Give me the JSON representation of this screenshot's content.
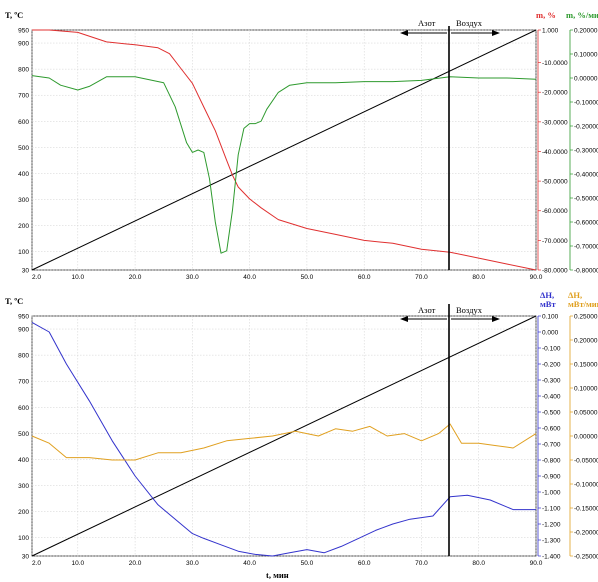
{
  "chart_data": [
    {
      "type": "line",
      "x": {
        "label": "",
        "ticks": [
          "2.0",
          "10.0",
          "20.0",
          "30.0",
          "40.0",
          "50.0",
          "60.0",
          "70.0",
          "80.0",
          "90.0"
        ],
        "range": [
          2,
          90
        ]
      },
      "y_left": {
        "label": "T, ºC",
        "ticks": [
          "30",
          "100",
          "200",
          "300",
          "400",
          "500",
          "600",
          "700",
          "800",
          "900",
          "950"
        ],
        "range": [
          30,
          950
        ],
        "color": "#000000"
      },
      "y_right1": {
        "label": "m, %",
        "ticks": [
          "1.000",
          "-10.0000",
          "-20.0000",
          "-30.0000",
          "-40.0000",
          "-50.0000",
          "-60.0000",
          "-70.0000",
          "-80.0000"
        ],
        "range": [
          -80,
          1
        ],
        "color": "#e03030"
      },
      "y_right2": {
        "label": "m, %/мин",
        "ticks": [
          "0.20000",
          "0.10000",
          "0.00000",
          "-0.10000",
          "-0.20000",
          "-0.30000",
          "-0.40000",
          "-0.50000",
          "-0.60000",
          "-0.70000",
          "-0.80000"
        ],
        "range": [
          -0.8,
          0.2
        ],
        "color": "#2e9a2e"
      },
      "annotation": {
        "left": "Азот",
        "right": "Воздух",
        "x": 75
      },
      "grid": true,
      "series": [
        {
          "axis": "left",
          "color": "#000000",
          "x": [
            2,
            90
          ],
          "y": [
            30,
            950
          ]
        },
        {
          "axis": "right1",
          "color": "#e03030",
          "x": [
            2,
            5,
            10,
            15,
            20,
            24,
            26,
            28,
            30,
            32,
            34,
            36,
            37,
            38,
            40,
            42,
            45,
            50,
            55,
            60,
            65,
            70,
            75,
            80,
            85,
            90
          ],
          "y": [
            1,
            1,
            0.2,
            -3,
            -4,
            -5,
            -7,
            -12,
            -17,
            -25,
            -33,
            -43,
            -48,
            -52,
            -56,
            -59,
            -63,
            -66,
            -68,
            -70,
            -71,
            -73,
            -74,
            -76,
            -78,
            -80
          ]
        },
        {
          "axis": "right2",
          "color": "#2e9a2e",
          "x": [
            2,
            5,
            7,
            10,
            12,
            15,
            20,
            25,
            27,
            29,
            30,
            31,
            32,
            33,
            34,
            35,
            36,
            37,
            38,
            39,
            40,
            41,
            42,
            43,
            45,
            47,
            50,
            55,
            60,
            65,
            70,
            75,
            80,
            85,
            90
          ],
          "y": [
            0.01,
            0.0,
            -0.03,
            -0.05,
            -0.035,
            0.005,
            0.005,
            -0.02,
            -0.12,
            -0.27,
            -0.31,
            -0.3,
            -0.31,
            -0.42,
            -0.6,
            -0.73,
            -0.72,
            -0.55,
            -0.32,
            -0.21,
            -0.19,
            -0.19,
            -0.18,
            -0.13,
            -0.06,
            -0.03,
            -0.02,
            -0.02,
            -0.015,
            -0.015,
            -0.01,
            0.005,
            0.0,
            0.0,
            -0.005
          ]
        }
      ]
    },
    {
      "type": "line",
      "x": {
        "label": "t, мин",
        "ticks": [
          "2.0",
          "10.0",
          "20.0",
          "30.0",
          "40.0",
          "50.0",
          "60.0",
          "70.0",
          "80.0",
          "90.0"
        ],
        "range": [
          2,
          90
        ]
      },
      "y_left": {
        "label": "T, ºC",
        "ticks": [
          "30",
          "100",
          "200",
          "300",
          "400",
          "500",
          "600",
          "700",
          "800",
          "900",
          "950"
        ],
        "range": [
          30,
          950
        ],
        "color": "#000000"
      },
      "y_right1": {
        "label": "ΔH, мВт",
        "ticks": [
          "0.100",
          "0.000",
          "-0.100",
          "-0.200",
          "-0.300",
          "-0.400",
          "-0.500",
          "-0.600",
          "-0.700",
          "-0.800",
          "-0.900",
          "-1.000",
          "-1.100",
          "-1.200",
          "-1.300",
          "-1.400"
        ],
        "range": [
          -1.4,
          0.1
        ],
        "color": "#3333cc"
      },
      "y_right2": {
        "label": "ΔH, мВт/мин",
        "ticks": [
          "0.25000",
          "0.20000",
          "0.15000",
          "0.10000",
          "0.05000",
          "0.00000",
          "-0.05000",
          "-0.10000",
          "-0.15000",
          "-0.20000",
          "-0.25000"
        ],
        "range": [
          -0.25,
          0.25
        ],
        "color": "#e0a020"
      },
      "annotation": {
        "left": "Азот",
        "right": "Воздух",
        "x": 75
      },
      "grid": true,
      "series": [
        {
          "axis": "left",
          "color": "#000000",
          "x": [
            2,
            90
          ],
          "y": [
            30,
            950
          ]
        },
        {
          "axis": "right1",
          "color": "#3333cc",
          "x": [
            2,
            5,
            8,
            12,
            16,
            20,
            24,
            28,
            30,
            32,
            35,
            38,
            41,
            44,
            47,
            50,
            53,
            56,
            59,
            62,
            65,
            68,
            72,
            75,
            78,
            82,
            86,
            90
          ],
          "y": [
            0.06,
            0.0,
            -0.2,
            -0.43,
            -0.68,
            -0.9,
            -1.08,
            -1.2,
            -1.26,
            -1.29,
            -1.33,
            -1.37,
            -1.39,
            -1.4,
            -1.38,
            -1.36,
            -1.38,
            -1.34,
            -1.29,
            -1.24,
            -1.2,
            -1.17,
            -1.15,
            -1.03,
            -1.02,
            -1.05,
            -1.11,
            -1.11
          ]
        },
        {
          "axis": "right2",
          "color": "#e0a020",
          "x": [
            2,
            5,
            8,
            12,
            16,
            20,
            24,
            28,
            32,
            36,
            40,
            44,
            48,
            52,
            55,
            58,
            61,
            64,
            67,
            70,
            73,
            75,
            77,
            80,
            83,
            86,
            90
          ],
          "y": [
            0.0,
            -0.015,
            -0.045,
            -0.045,
            -0.05,
            -0.05,
            -0.035,
            -0.035,
            -0.025,
            -0.01,
            -0.005,
            0.0,
            0.01,
            0.0,
            0.015,
            0.01,
            0.02,
            0.0,
            0.005,
            -0.01,
            0.005,
            0.025,
            -0.015,
            -0.015,
            -0.02,
            -0.025,
            0.005
          ]
        }
      ]
    }
  ]
}
